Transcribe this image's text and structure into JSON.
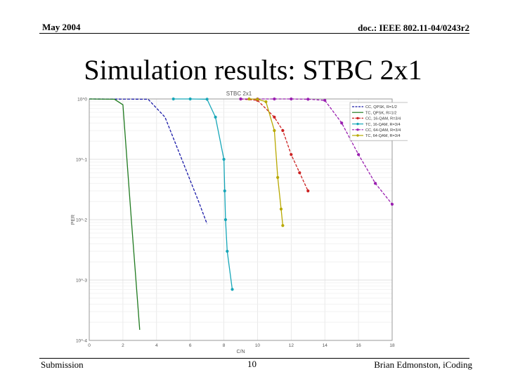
{
  "header": {
    "date": "May 2004",
    "doc_id": "doc.: IEEE 802.11-04/0243r2"
  },
  "slide": {
    "title": "Simulation results: STBC 2x1"
  },
  "footer": {
    "left": "Submission",
    "page": "10",
    "author": "Brian Edmonston, iCoding"
  },
  "chart_data": {
    "type": "line",
    "title": "STBC 2x1",
    "xlabel": "C/N",
    "ylabel": "PER",
    "xlim": [
      0,
      18
    ],
    "ylim": [
      0.0001,
      1
    ],
    "yscale": "log",
    "grid": true,
    "legend_position": "top-right",
    "x_ticks": [
      "0",
      "2",
      "4",
      "6",
      "8",
      "10",
      "12",
      "14",
      "16",
      "18"
    ],
    "y_ticks": [
      {
        "value": 1,
        "label": "10^0"
      },
      {
        "value": 0.1,
        "label": "10^-1"
      },
      {
        "value": 0.01,
        "label": "10^-2"
      },
      {
        "value": 0.001,
        "label": "10^-3"
      },
      {
        "value": 0.0001,
        "label": "10^-4"
      }
    ],
    "series": [
      {
        "name": "CC, QPSK, R=1/2",
        "color": "#1a1aa8",
        "dash": true,
        "marker": "none",
        "x": [
          0,
          3.5,
          4.5,
          5.5,
          6.5,
          7.0
        ],
        "y": [
          1,
          0.99,
          0.5,
          0.1,
          0.02,
          0.0085
        ]
      },
      {
        "name": "TC, QPSK, R=1/2",
        "color": "#1f7a1f",
        "dash": false,
        "marker": "none",
        "x": [
          0,
          1.5,
          2.0,
          2.5,
          3.0
        ],
        "y": [
          1,
          0.99,
          0.8,
          0.01,
          0.00015
        ]
      },
      {
        "name": "CC, 16-QAM, R=3/4",
        "color": "#cc2222",
        "dash": true,
        "marker": "dot",
        "x": [
          9.0,
          10.0,
          11.0,
          11.5,
          12.0,
          12.5,
          13.0
        ],
        "y": [
          1,
          0.95,
          0.5,
          0.3,
          0.12,
          0.06,
          0.03
        ]
      },
      {
        "name": "TC, 16-QAM, R=3/4",
        "color": "#16a6b8",
        "dash": false,
        "marker": "dot",
        "x": [
          5.0,
          6.0,
          7.0,
          7.5,
          8.0,
          8.05,
          8.1,
          8.2,
          8.5
        ],
        "y": [
          1,
          1,
          0.99,
          0.5,
          0.1,
          0.03,
          0.01,
          0.003,
          0.0007
        ]
      },
      {
        "name": "CC, 64-QAM, R=3/4",
        "color": "#9a1fb0",
        "dash": true,
        "marker": "dot",
        "x": [
          9.0,
          10.0,
          11.0,
          12.0,
          13.0,
          14.0,
          15.0,
          16.0,
          17.0,
          18.0
        ],
        "y": [
          1,
          1,
          1,
          1,
          0.99,
          0.95,
          0.4,
          0.12,
          0.04,
          0.018
        ]
      },
      {
        "name": "TC, 64-QAM, R=3/4",
        "color": "#b8a800",
        "dash": false,
        "marker": "dot",
        "x": [
          9.5,
          10.0,
          10.5,
          11.0,
          11.2,
          11.4,
          11.5
        ],
        "y": [
          1,
          0.99,
          0.9,
          0.3,
          0.05,
          0.015,
          0.008
        ]
      }
    ]
  }
}
